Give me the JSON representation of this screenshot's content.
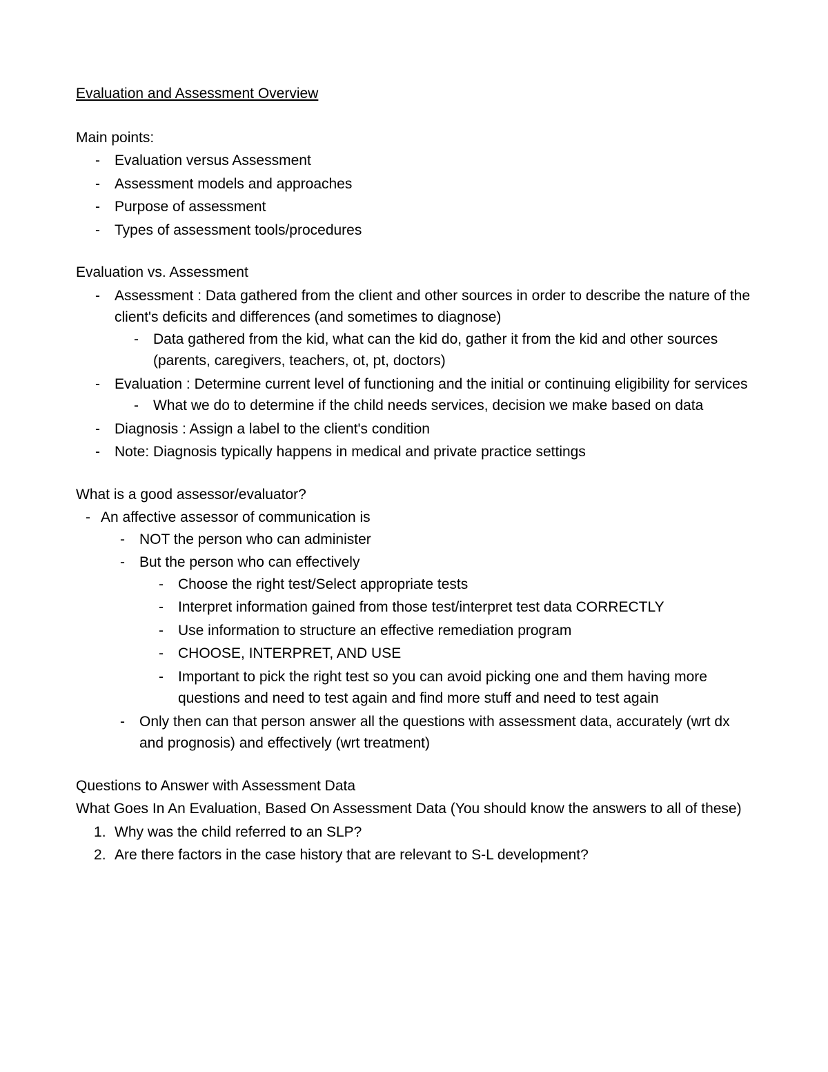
{
  "title": "Evaluation and Assessment Overview",
  "mainPoints": {
    "heading": "Main points:",
    "items": [
      "Evaluation versus Assessment",
      "Assessment models and approaches",
      "Purpose of assessment",
      "Types of assessment tools/procedures"
    ]
  },
  "evalVsAssess": {
    "heading": "Evaluation vs. Assessment",
    "items": [
      {
        "text": "Assessment : Data gathered from the client and other sources in order to describe the nature of the client's deficits and differences (and sometimes to diagnose)",
        "sub": [
          "Data gathered from the kid, what can the kid do, gather it from the kid and other sources (parents, caregivers, teachers, ot, pt, doctors)"
        ]
      },
      {
        "text": "Evaluation : Determine current level of functioning and the initial or continuing eligibility for services",
        "sub": [
          "What we do to determine if the child needs services, decision we make based on data"
        ]
      },
      {
        "text": "Diagnosis : Assign a label to the client's condition"
      },
      {
        "text": "Note: Diagnosis typically happens in medical and private practice settings"
      }
    ]
  },
  "goodAssessor": {
    "heading": "What is a good assessor/evaluator?",
    "intro": "An affective assessor of communication is",
    "sub": [
      {
        "text": "NOT the person who can administer"
      },
      {
        "text": "But the person who can effectively",
        "sub": [
          "Choose the right test/Select appropriate tests",
          "Interpret information gained from those test/interpret test data CORRECTLY",
          "Use information to structure an effective remediation program",
          "CHOOSE, INTERPRET, AND USE",
          "Important to pick the right test so you can avoid picking one and them having more questions and need to test again and find more stuff and need to test again"
        ]
      },
      {
        "text": "Only then can that person answer all the questions with assessment data, accurately (wrt dx and prognosis) and effectively (wrt treatment)"
      }
    ]
  },
  "questions": {
    "heading1": "Questions to Answer with Assessment Data",
    "heading2": "What Goes In An Evaluation, Based On Assessment Data (You should know the answers to all of these)",
    "items": [
      "Why was the child referred to an SLP?",
      "Are there factors in the case history that are relevant to S-L development?"
    ]
  }
}
